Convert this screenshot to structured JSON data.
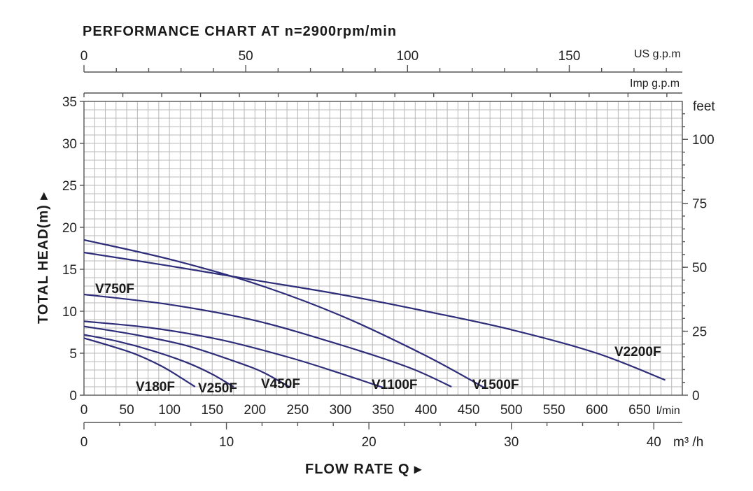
{
  "chart_data": {
    "type": "line",
    "title": "PERFORMANCE CHART AT n=2900rpm/min",
    "ylabel": "TOTAL HEAD(m)",
    "xlabel": "FLOW RATE Q",
    "y_unit_right": "feet",
    "x_unit_lmin": "l/min",
    "x_unit_m3h": "m³ /h",
    "top_unit_us": "US g.p.m",
    "top_unit_imp": "Imp g.p.m",
    "ylim": [
      0,
      35
    ],
    "xlim_lmin": [
      0,
      700
    ],
    "grid": true,
    "y_ticks": [
      "0",
      "5",
      "10",
      "15",
      "20",
      "25",
      "30",
      "35"
    ],
    "y_ticks_feet": [
      "0",
      "25",
      "50",
      "75",
      "100"
    ],
    "x_ticks_lmin": [
      "0",
      "50",
      "100",
      "150",
      "200",
      "250",
      "300",
      "350",
      "400",
      "450",
      "500",
      "550",
      "600",
      "650"
    ],
    "x_ticks_m3h": [
      "0",
      "10",
      "20",
      "30",
      "40"
    ],
    "top_ticks_us": [
      "0",
      "50",
      "100",
      "150"
    ],
    "series": [
      {
        "name": "V180F",
        "x": [
          0,
          30,
          60,
          90,
          110,
          130
        ],
        "y": [
          6.8,
          5.9,
          4.9,
          3.5,
          2.3,
          1.0
        ]
      },
      {
        "name": "V250F",
        "x": [
          0,
          40,
          80,
          120,
          150,
          175
        ],
        "y": [
          7.2,
          6.4,
          5.3,
          3.9,
          2.5,
          1.0
        ]
      },
      {
        "name": "V450F",
        "x": [
          0,
          60,
          120,
          180,
          210,
          240
        ],
        "y": [
          8.2,
          7.2,
          5.9,
          3.9,
          2.7,
          1.0
        ]
      },
      {
        "name": "V1100F",
        "x": [
          0,
          80,
          160,
          240,
          300,
          350
        ],
        "y": [
          8.8,
          8.0,
          6.6,
          4.5,
          2.6,
          0.9
        ]
      },
      {
        "name": "V750F",
        "x": [
          0,
          100,
          200,
          300,
          380,
          430
        ],
        "y": [
          12.0,
          10.8,
          8.9,
          6.0,
          3.3,
          1.0
        ]
      },
      {
        "name": "V1500F",
        "x": [
          0,
          100,
          200,
          300,
          400,
          470
        ],
        "y": [
          18.5,
          16.2,
          13.3,
          9.5,
          4.7,
          0.8
        ]
      },
      {
        "name": "V2200F",
        "x": [
          0,
          100,
          200,
          300,
          400,
          500,
          600,
          680
        ],
        "y": [
          17.0,
          15.4,
          13.7,
          12.0,
          10.0,
          7.8,
          5.0,
          1.8
        ]
      }
    ]
  },
  "labels": {
    "title": "PERFORMANCE CHART AT n=2900rpm/min",
    "ylabel": "TOTAL HEAD(m) ▸",
    "xlabel": "FLOW RATE Q ▸",
    "feet": "feet",
    "lmin": "l/min",
    "m3h": "m³ /h",
    "us": "US g.p.m",
    "imp": "Imp g.p.m"
  },
  "curve_labels": {
    "V750F": "V750F",
    "V180F": "V180F",
    "V250F": "V250F",
    "V450F": "V450F",
    "V1100F": "V1100F",
    "V1500F": "V1500F",
    "V2200F": "V2200F"
  }
}
